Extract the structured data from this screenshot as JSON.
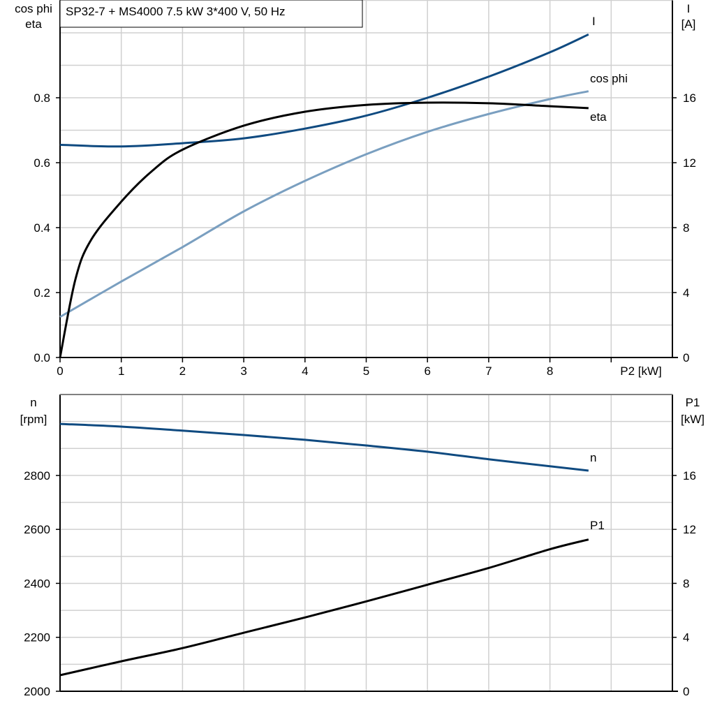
{
  "title": "SP32-7 + MS4000   7.5 kW   3*400 V, 50 Hz",
  "chart_data": [
    {
      "type": "line",
      "xlabel": "P2 [kW]",
      "xlim": [
        0,
        10
      ],
      "xticks": [
        0,
        1,
        2,
        3,
        4,
        5,
        6,
        7,
        8
      ],
      "ylabel_left": [
        "cos phi",
        "eta"
      ],
      "ylim_left": [
        0,
        1.1
      ],
      "yticks_left": [
        0.0,
        0.2,
        0.4,
        0.6,
        0.8
      ],
      "ylabel_right": [
        "I",
        "[A]"
      ],
      "ylim_right": [
        0,
        22
      ],
      "yticks_right": [
        0,
        4,
        8,
        12,
        16
      ],
      "grid": true,
      "series": [
        {
          "name": "I",
          "axis": "right",
          "color": "#0f4a80",
          "x": [
            0,
            1,
            2,
            3,
            4,
            5,
            6,
            7,
            8,
            8.63
          ],
          "y": [
            13.1,
            13.0,
            13.2,
            13.5,
            14.1,
            14.9,
            16.0,
            17.3,
            18.8,
            19.9
          ]
        },
        {
          "name": "cos phi",
          "axis": "left",
          "color": "#7a9fc0",
          "x": [
            0,
            1,
            2,
            3,
            4,
            5,
            6,
            7,
            8,
            8.63
          ],
          "y": [
            0.125,
            0.234,
            0.34,
            0.45,
            0.544,
            0.626,
            0.695,
            0.75,
            0.796,
            0.82
          ]
        },
        {
          "name": "eta",
          "axis": "left",
          "color": "#000000",
          "x": [
            0,
            0.25,
            0.5,
            1,
            1.5,
            2,
            3,
            4,
            5,
            6,
            7,
            8,
            8.63
          ],
          "y": [
            0,
            0.24,
            0.36,
            0.48,
            0.574,
            0.64,
            0.714,
            0.757,
            0.778,
            0.785,
            0.783,
            0.774,
            0.768
          ]
        }
      ]
    },
    {
      "type": "line",
      "xlim": [
        0,
        10
      ],
      "ylabel_left": [
        "n",
        "[rpm]"
      ],
      "ylim_left": [
        2000,
        3100
      ],
      "yticks_left": [
        2000,
        2200,
        2400,
        2600,
        2800
      ],
      "ylabel_right": [
        "P1",
        "[kW]"
      ],
      "ylim_right": [
        0,
        22
      ],
      "yticks_right": [
        0,
        4,
        8,
        12,
        16
      ],
      "grid": true,
      "series": [
        {
          "name": "n",
          "axis": "left",
          "color": "#0f4a80",
          "x": [
            0,
            1,
            2,
            3,
            4,
            5,
            6,
            7,
            8,
            8.63
          ],
          "y": [
            2991,
            2981,
            2966,
            2950,
            2932,
            2911,
            2888,
            2860,
            2834,
            2818
          ]
        },
        {
          "name": "P1",
          "axis": "right",
          "color": "#000000",
          "x": [
            0,
            1,
            2,
            3,
            4,
            5,
            6,
            7,
            8,
            8.63
          ],
          "y": [
            1.19,
            2.22,
            3.2,
            4.34,
            5.47,
            6.66,
            7.9,
            9.14,
            10.53,
            11.25
          ]
        }
      ]
    }
  ]
}
